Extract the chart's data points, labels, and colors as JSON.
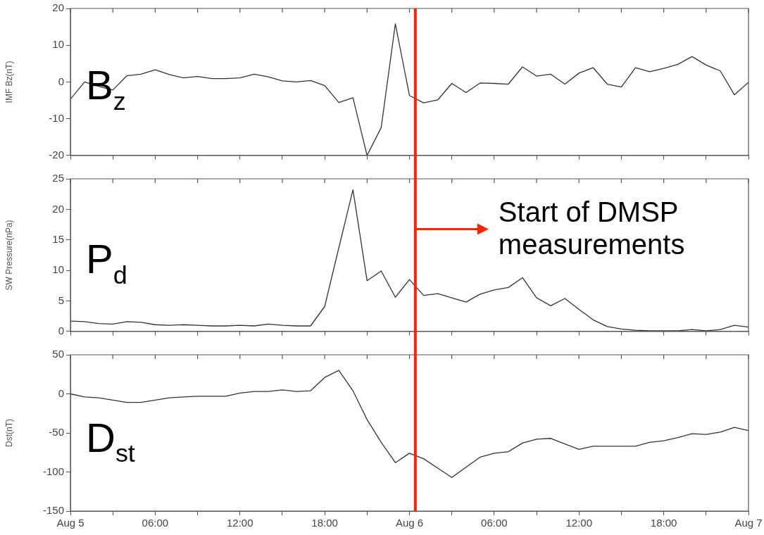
{
  "chart_data": [
    {
      "type": "line",
      "title": "B$_{z}$",
      "ylabel": "IMF Bz(nT)",
      "x": [
        "--08-05T00:00",
        "--08-05T01:00",
        "--08-05T02:00",
        "--08-05T03:00",
        "--08-05T04:00",
        "--08-05T05:00",
        "--08-05T06:00",
        "--08-05T07:00",
        "--08-05T08:00",
        "--08-05T09:00",
        "--08-05T10:00",
        "--08-05T11:00",
        "--08-05T12:00",
        "--08-05T13:00",
        "--08-05T14:00",
        "--08-05T15:00",
        "--08-05T16:00",
        "--08-05T17:00",
        "--08-05T18:00",
        "--08-05T19:00",
        "--08-05T20:00",
        "--08-05T21:00",
        "--08-05T22:00",
        "--08-05T23:00",
        "--08-06T00:00",
        "--08-06T01:00",
        "--08-06T02:00",
        "--08-06T03:00",
        "--08-06T04:00",
        "--08-06T05:00",
        "--08-06T06:00",
        "--08-06T07:00",
        "--08-06T08:00",
        "--08-06T09:00",
        "--08-06T10:00",
        "--08-06T11:00",
        "--08-06T12:00",
        "--08-06T13:00",
        "--08-06T14:00",
        "--08-06T15:00",
        "--08-06T16:00",
        "--08-06T17:00",
        "--08-06T18:00",
        "--08-06T19:00",
        "--08-06T20:00",
        "--08-06T21:00",
        "--08-06T22:00",
        "--08-06T23:00",
        "--08-07T00:00"
      ],
      "series": [
        {
          "color": "#333333",
          "values": [
            -4.7,
            0,
            -1.2,
            -2.2,
            1.7,
            2.1,
            3.3,
            2.0,
            1.1,
            1.5,
            0.9,
            0.9,
            1.1,
            2.1,
            1.4,
            0.3,
            0,
            0.4,
            -1.0,
            -5.6,
            -4.3,
            -20,
            -12.4,
            15.8,
            -3.7,
            -5.7,
            -4.9,
            -0.4,
            -2.9,
            -0.3,
            -0.4,
            -0.6,
            4.1,
            1.6,
            2.1,
            -0.6,
            2.4,
            3.9,
            -0.6,
            -1.4,
            3.9,
            2.8,
            3.7,
            4.8,
            6.9,
            4.6,
            3.0,
            -3.5,
            -0.1
          ]
        }
      ],
      "xlim": [
        "--08-05T00:00",
        "--08-07T00:00"
      ],
      "ylim": [
        -20,
        20
      ],
      "yticks": [
        -20,
        -10,
        0,
        10,
        20
      ],
      "xticks": [
        {
          "value": "--08-05T00:00",
          "label": null
        },
        {
          "value": "--08-05T03:00",
          "label": null
        },
        {
          "value": "--08-05T06:00",
          "label": null
        },
        {
          "value": "--08-05T09:00",
          "label": null
        },
        {
          "value": "--08-05T12:00",
          "label": null
        },
        {
          "value": "--08-05T15:00",
          "label": null
        },
        {
          "value": "--08-05T18:00",
          "label": null
        },
        {
          "value": "--08-05T21:00",
          "label": null
        },
        {
          "value": "--08-06T00:00",
          "label": null
        },
        {
          "value": "--08-06T03:00",
          "label": null
        },
        {
          "value": "--08-06T06:00",
          "label": null
        },
        {
          "value": "--08-06T09:00",
          "label": null
        },
        {
          "value": "--08-06T12:00",
          "label": null
        },
        {
          "value": "--08-06T15:00",
          "label": null
        },
        {
          "value": "--08-06T18:00",
          "label": null
        },
        {
          "value": "--08-06T21:00",
          "label": null
        },
        {
          "value": "--08-07T00:00",
          "label": null
        }
      ],
      "tick_labels": "y",
      "ref_lines": [
        {
          "axis": "x",
          "value": "--08-06T00:25",
          "color": "#ff2200"
        }
      ]
    },
    {
      "type": "line",
      "title": "P$_{d}$",
      "ylabel": "SW Pressure(nPa)",
      "x": [
        "--08-05T00:00",
        "--08-05T01:00",
        "--08-05T02:00",
        "--08-05T03:00",
        "--08-05T04:00",
        "--08-05T05:00",
        "--08-05T06:00",
        "--08-05T07:00",
        "--08-05T08:00",
        "--08-05T09:00",
        "--08-05T10:00",
        "--08-05T11:00",
        "--08-05T12:00",
        "--08-05T13:00",
        "--08-05T14:00",
        "--08-05T15:00",
        "--08-05T16:00",
        "--08-05T17:00",
        "--08-05T18:00",
        "--08-05T19:00",
        "--08-05T20:00",
        "--08-05T21:00",
        "--08-05T22:00",
        "--08-05T23:00",
        "--08-06T00:00",
        "--08-06T01:00",
        "--08-06T02:00",
        "--08-06T03:00",
        "--08-06T04:00",
        "--08-06T05:00",
        "--08-06T06:00",
        "--08-06T07:00",
        "--08-06T08:00",
        "--08-06T09:00",
        "--08-06T10:00",
        "--08-06T11:00",
        "--08-06T12:00",
        "--08-06T13:00",
        "--08-06T14:00",
        "--08-06T15:00",
        "--08-06T16:00",
        "--08-06T17:00",
        "--08-06T18:00",
        "--08-06T19:00",
        "--08-06T20:00",
        "--08-06T21:00",
        "--08-06T22:00",
        "--08-06T23:00",
        "--08-07T00:00"
      ],
      "series": [
        {
          "color": "#333333",
          "values": [
            1.7,
            1.6,
            1.3,
            1.2,
            1.6,
            1.5,
            1.1,
            1.0,
            1.1,
            1.0,
            0.9,
            0.9,
            1.0,
            0.9,
            1.2,
            1.0,
            0.9,
            0.9,
            4.1,
            13.7,
            23.2,
            8.3,
            9.9,
            5.6,
            8.5,
            5.9,
            6.2,
            5.5,
            4.8,
            6.1,
            6.8,
            7.2,
            8.8,
            5.5,
            4.2,
            5.4,
            3.6,
            1.9,
            0.8,
            0.4,
            0.2,
            0.1,
            0.1,
            0.1,
            0.3,
            0.1,
            0.3,
            1.0,
            0.7
          ]
        }
      ],
      "xlim": [
        "--08-05T00:00",
        "--08-07T00:00"
      ],
      "ylim": [
        0,
        25
      ],
      "yticks": [
        0,
        5,
        10,
        15,
        20,
        25
      ],
      "xticks": [
        {
          "value": "--08-05T00:00",
          "label": null
        },
        {
          "value": "--08-05T03:00",
          "label": null
        },
        {
          "value": "--08-05T06:00",
          "label": null
        },
        {
          "value": "--08-05T09:00",
          "label": null
        },
        {
          "value": "--08-05T12:00",
          "label": null
        },
        {
          "value": "--08-05T15:00",
          "label": null
        },
        {
          "value": "--08-05T18:00",
          "label": null
        },
        {
          "value": "--08-05T21:00",
          "label": null
        },
        {
          "value": "--08-06T00:00",
          "label": null
        },
        {
          "value": "--08-06T03:00",
          "label": null
        },
        {
          "value": "--08-06T06:00",
          "label": null
        },
        {
          "value": "--08-06T09:00",
          "label": null
        },
        {
          "value": "--08-06T12:00",
          "label": null
        },
        {
          "value": "--08-06T15:00",
          "label": null
        },
        {
          "value": "--08-06T18:00",
          "label": null
        },
        {
          "value": "--08-06T21:00",
          "label": null
        },
        {
          "value": "--08-07T00:00",
          "label": null
        }
      ],
      "tick_labels": "y",
      "ref_lines": [
        {
          "axis": "x",
          "value": "--08-06T00:25",
          "color": "#ff2200",
          "label": "Start of DMSP measurements"
        }
      ]
    },
    {
      "type": "line",
      "title": "D$_{st}$",
      "ylabel": "Dst(nT)",
      "x": [
        "--08-05T00:00",
        "--08-05T01:00",
        "--08-05T02:00",
        "--08-05T03:00",
        "--08-05T04:00",
        "--08-05T05:00",
        "--08-05T06:00",
        "--08-05T07:00",
        "--08-05T08:00",
        "--08-05T09:00",
        "--08-05T10:00",
        "--08-05T11:00",
        "--08-05T12:00",
        "--08-05T13:00",
        "--08-05T14:00",
        "--08-05T15:00",
        "--08-05T16:00",
        "--08-05T17:00",
        "--08-05T18:00",
        "--08-05T19:00",
        "--08-05T20:00",
        "--08-05T21:00",
        "--08-05T22:00",
        "--08-05T23:00",
        "--08-06T00:00",
        "--08-06T01:00",
        "--08-06T02:00",
        "--08-06T03:00",
        "--08-06T04:00",
        "--08-06T05:00",
        "--08-06T06:00",
        "--08-06T07:00",
        "--08-06T08:00",
        "--08-06T09:00",
        "--08-06T10:00",
        "--08-06T11:00",
        "--08-06T12:00",
        "--08-06T13:00",
        "--08-06T14:00",
        "--08-06T15:00",
        "--08-06T16:00",
        "--08-06T17:00",
        "--08-06T18:00",
        "--08-06T19:00",
        "--08-06T20:00",
        "--08-06T21:00",
        "--08-06T22:00",
        "--08-06T23:00",
        "--08-07T00:00"
      ],
      "series": [
        {
          "color": "#333333",
          "values": [
            0,
            -4,
            -5,
            -8,
            -11,
            -11,
            -8,
            -5,
            -4,
            -3,
            -3,
            -3,
            1,
            3,
            3,
            5,
            3,
            4,
            21,
            30,
            4,
            -33,
            -62,
            -88,
            -76,
            -83,
            -95,
            -107,
            -94,
            -81,
            -76,
            -74,
            -63,
            -58,
            -57,
            -64,
            -71,
            -67,
            -67,
            -67,
            -67,
            -62,
            -60,
            -56,
            -51,
            -52,
            -49,
            -43,
            -47
          ]
        }
      ],
      "xlim": [
        "--08-05T00:00",
        "--08-07T00:00"
      ],
      "ylim": [
        -150,
        50
      ],
      "yticks": [
        -150,
        -100,
        -50,
        0,
        50
      ],
      "xticks": [
        {
          "value": "--08-05T00:00",
          "label": "Aug 5"
        },
        {
          "value": "--08-05T03:00",
          "label": null
        },
        {
          "value": "--08-05T06:00",
          "label": "06:00"
        },
        {
          "value": "--08-05T09:00",
          "label": null
        },
        {
          "value": "--08-05T12:00",
          "label": "12:00"
        },
        {
          "value": "--08-05T15:00",
          "label": null
        },
        {
          "value": "--08-05T18:00",
          "label": "18:00"
        },
        {
          "value": "--08-05T21:00",
          "label": null
        },
        {
          "value": "--08-06T00:00",
          "label": "Aug 6"
        },
        {
          "value": "--08-06T03:00",
          "label": null
        },
        {
          "value": "--08-06T06:00",
          "label": "06:00"
        },
        {
          "value": "--08-06T09:00",
          "label": null
        },
        {
          "value": "--08-06T12:00",
          "label": "12:00"
        },
        {
          "value": "--08-06T15:00",
          "label": null
        },
        {
          "value": "--08-06T18:00",
          "label": "18:00"
        },
        {
          "value": "--08-06T21:00",
          "label": null
        },
        {
          "value": "--08-07T00:00",
          "label": "Aug 7"
        }
      ],
      "ref_lines": [
        {
          "axis": "x",
          "value": "--08-06T00:25",
          "color": "#ff2200"
        }
      ]
    }
  ]
}
